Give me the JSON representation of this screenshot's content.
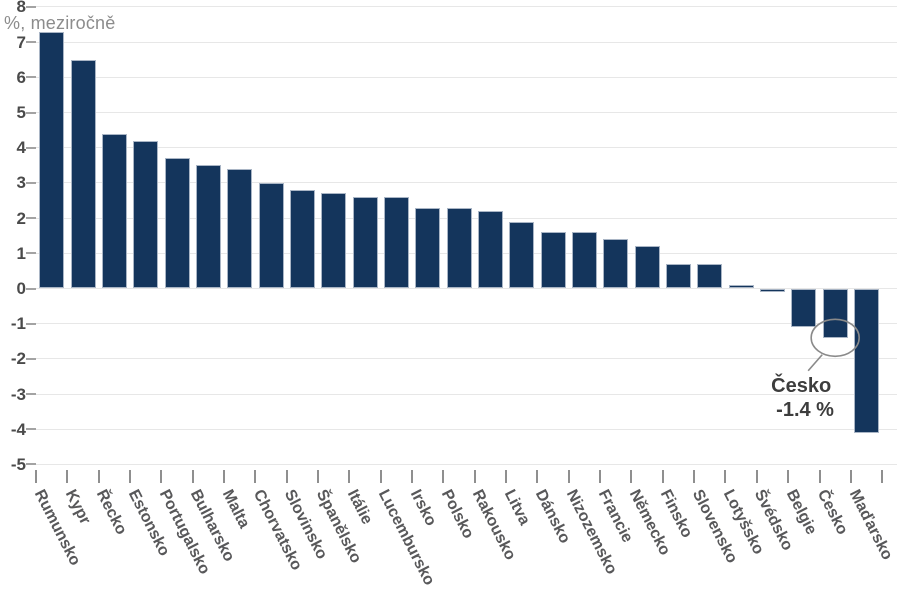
{
  "chart_data": {
    "type": "bar",
    "subtitle": "%, meziročně",
    "categories": [
      "Rumunsko",
      "Kypr",
      "Řecko",
      "Estonsko",
      "Portugalsko",
      "Bulharsko",
      "Malta",
      "Chorvatsko",
      "Slovinsko",
      "Španělsko",
      "Itálie",
      "Lucembursko",
      "Irsko",
      "Polsko",
      "Rakousko",
      "Litva",
      "Dánsko",
      "Nizozemsko",
      "Francie",
      "Německo",
      "Finsko",
      "Slovensko",
      "Lotyšsko",
      "Švédsko",
      "Belgie",
      "Česko",
      "Maďarsko"
    ],
    "values": [
      7.3,
      6.5,
      4.4,
      4.2,
      3.7,
      3.5,
      3.4,
      3.0,
      2.8,
      2.7,
      2.6,
      2.6,
      2.3,
      2.3,
      2.2,
      1.9,
      1.6,
      1.6,
      1.4,
      1.2,
      0.7,
      0.7,
      0.1,
      -0.1,
      -1.1,
      -1.4,
      -4.1
    ],
    "yticks": [
      8,
      7,
      6,
      5,
      4,
      3,
      2,
      1,
      0,
      -1,
      -2,
      -3,
      -4,
      -5
    ],
    "ylim": [
      -5,
      8
    ],
    "grid": "horizontal",
    "legend": "none",
    "bar_color": "#14355c",
    "annotation": {
      "target": "Česko",
      "label": "Česko",
      "value_label": "-1.4 %",
      "stroke_color": "#8a8a8a"
    }
  }
}
